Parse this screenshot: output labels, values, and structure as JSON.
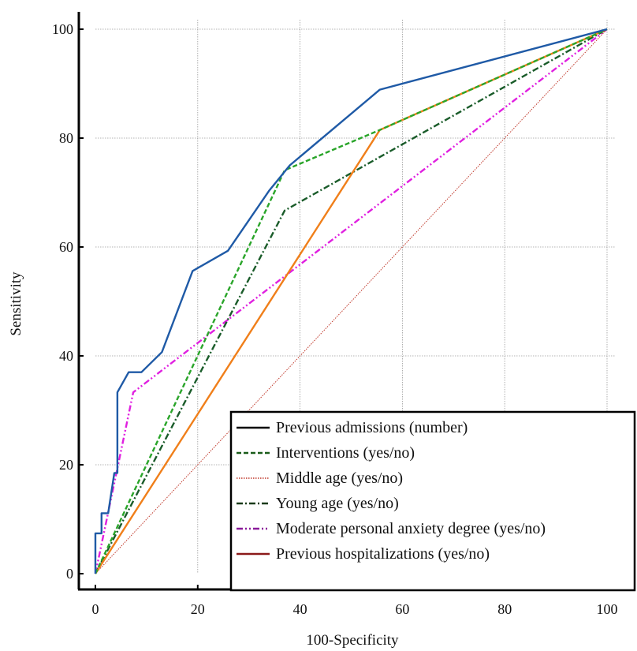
{
  "chart_data": {
    "type": "line",
    "title": "",
    "xlabel": "100-Specificity",
    "ylabel": "Sensitivity",
    "xlim": [
      0,
      100
    ],
    "ylim": [
      0,
      100
    ],
    "xticks": [
      "0",
      "20",
      "40",
      "60",
      "80",
      "100"
    ],
    "yticks": [
      "0",
      "20",
      "40",
      "60",
      "80",
      "100"
    ],
    "grid": true,
    "legend_placement": "bottom-right",
    "series": [
      {
        "name": "Previous admissions (number)",
        "color": "#1f5aa6",
        "dash": "solid",
        "points": [
          [
            0,
            0
          ],
          [
            0,
            7.4
          ],
          [
            1.2,
            7.4
          ],
          [
            1.2,
            11.1
          ],
          [
            2.5,
            11.1
          ],
          [
            3.7,
            18.5
          ],
          [
            4.3,
            18.5
          ],
          [
            4.3,
            33.3
          ],
          [
            6.5,
            37
          ],
          [
            9,
            37
          ],
          [
            13,
            40.7
          ],
          [
            19,
            55.6
          ],
          [
            25.9,
            59.3
          ],
          [
            34,
            70.4
          ],
          [
            38,
            75
          ],
          [
            55.6,
            88.9
          ],
          [
            100,
            100
          ]
        ]
      },
      {
        "name": "Interventions (yes/no)",
        "color": "#2aa52a",
        "dash": "6,3",
        "points": [
          [
            0,
            0
          ],
          [
            37,
            74.1
          ],
          [
            55.6,
            81.5
          ],
          [
            100,
            100
          ]
        ]
      },
      {
        "name": "Middle age (yes/no)",
        "color": "#c0392b",
        "dash": "1.5,1.5",
        "points": [
          [
            0,
            0
          ],
          [
            100,
            100
          ]
        ]
      },
      {
        "name": "Young age (yes/no)",
        "color": "#1a5c2a",
        "dash": "8,3,2,3",
        "points": [
          [
            0,
            0
          ],
          [
            37,
            66.7
          ],
          [
            100,
            100
          ]
        ]
      },
      {
        "name": "Moderate personal anxiety degree (yes/no)",
        "color": "#e020e0",
        "dash": "8,3,2,3,2,3",
        "points": [
          [
            0,
            0
          ],
          [
            7.4,
            33.3
          ],
          [
            100,
            100
          ]
        ]
      },
      {
        "name": "Previous hospitalizations (yes/no)",
        "color": "#f07f1a",
        "dash": "solid",
        "points": [
          [
            0,
            0
          ],
          [
            55.6,
            81.5
          ],
          [
            100,
            100
          ]
        ]
      }
    ],
    "legend": [
      {
        "label": "Previous admissions (number)",
        "color": "#000000",
        "dash": "solid"
      },
      {
        "label": "Interventions (yes/no)",
        "color": "#1a5c1a",
        "dash": "6,3"
      },
      {
        "label": "Middle age (yes/no)",
        "color": "#c0392b",
        "dash": "1.5,1.5"
      },
      {
        "label": "Young age (yes/no)",
        "color": "#1a3c1a",
        "dash": "8,3,2,3"
      },
      {
        "label": "Moderate personal anxiety degree (yes/no)",
        "color": "#8a1a9a",
        "dash": "8,3,2,3,2,3"
      },
      {
        "label": "Previous hospitalizations (yes/no)",
        "color": "#8b1a1a",
        "dash": "solid"
      }
    ]
  }
}
